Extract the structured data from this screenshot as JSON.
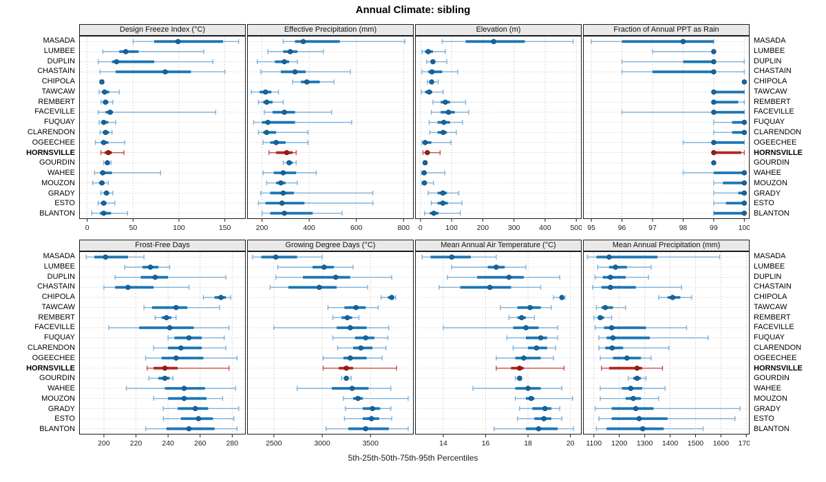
{
  "title": "Annual Climate: sibling",
  "footer": "5th-25th-50th-75th-95th Percentiles",
  "colors": {
    "blue_bar": "#1c76b4",
    "blue_whisker": "#7fb0d8",
    "blue_dot": "#1566a0",
    "blue_dot_edge": "#0b4a78",
    "red_bar": "#b2271f",
    "red_whisker": "#c44e44",
    "red_dot": "#9d1c14",
    "red_dot_edge": "#6f0f0a",
    "grid": "#c9c9c9",
    "strip_bg": "#e9e9e9",
    "panel_border": "#1a1a1a",
    "text": "#1a1a1a"
  },
  "chart_data": {
    "type": "dotplot-interval",
    "subtitle_note": "each row shows 5th-25th-50th-75th-95th percentile whisker/bar/dot",
    "percentiles": [
      5,
      25,
      50,
      75,
      95
    ],
    "categories": [
      "MASADA",
      "LUMBEE",
      "DUPLIN",
      "CHASTAIN",
      "CHIPOLA",
      "TAWCAW",
      "REMBERT",
      "FACEVILLE",
      "FUQUAY",
      "CLARENDON",
      "OGEECHEE",
      "HORNSVILLE",
      "GOURDIN",
      "WAHEE",
      "MOUZON",
      "GRADY",
      "ESTO",
      "BLANTON"
    ],
    "highlight": "HORNSVILLE",
    "highlight_index": 11,
    "legend_position": "none",
    "grid": "dotted",
    "panels": [
      {
        "title": "Design Freeze Index (°C)",
        "ticks": [
          0,
          50,
          100,
          150
        ],
        "xlim": [
          -8,
          172
        ],
        "rows": [
          [
            50,
            73,
            99,
            148,
            165
          ],
          [
            17,
            35,
            42,
            56,
            127
          ],
          [
            12,
            27,
            32,
            73,
            137
          ],
          [
            14,
            31,
            85,
            113,
            150
          ],
          [
            14,
            15,
            16,
            17,
            18
          ],
          [
            13,
            16,
            19,
            24,
            35
          ],
          [
            15,
            17,
            20,
            23,
            28
          ],
          [
            12,
            20,
            25,
            28,
            140
          ],
          [
            13,
            16,
            18,
            23,
            31
          ],
          [
            14,
            17,
            20,
            24,
            27
          ],
          [
            9,
            15,
            18,
            23,
            41
          ],
          [
            15,
            19,
            23,
            27,
            40
          ],
          [
            18,
            20,
            22,
            24,
            26
          ],
          [
            8,
            14,
            17,
            27,
            80
          ],
          [
            6,
            13,
            16,
            19,
            23
          ],
          [
            15,
            18,
            21,
            24,
            28
          ],
          [
            12,
            15,
            18,
            21,
            30
          ],
          [
            5,
            14,
            18,
            26,
            44
          ]
        ]
      },
      {
        "title": "Effective Precipitation (mm)",
        "ticks": [
          200,
          400,
          600,
          800
        ],
        "xlim": [
          140,
          840
        ],
        "rows": [
          [
            290,
            340,
            375,
            530,
            805
          ],
          [
            225,
            290,
            320,
            350,
            460
          ],
          [
            180,
            255,
            295,
            315,
            350
          ],
          [
            195,
            280,
            340,
            385,
            575
          ],
          [
            330,
            365,
            390,
            445,
            505
          ],
          [
            155,
            190,
            215,
            240,
            270
          ],
          [
            185,
            205,
            220,
            245,
            290
          ],
          [
            210,
            245,
            295,
            340,
            495
          ],
          [
            165,
            200,
            225,
            340,
            580
          ],
          [
            185,
            205,
            220,
            260,
            395
          ],
          [
            205,
            235,
            260,
            300,
            395
          ],
          [
            230,
            260,
            305,
            330,
            345
          ],
          [
            290,
            305,
            315,
            330,
            345
          ],
          [
            205,
            250,
            290,
            345,
            430
          ],
          [
            220,
            260,
            280,
            300,
            350
          ],
          [
            195,
            235,
            290,
            335,
            670
          ],
          [
            185,
            215,
            285,
            380,
            670
          ],
          [
            200,
            235,
            295,
            415,
            540
          ]
        ]
      },
      {
        "title": "Elevation (m)",
        "ticks": [
          0,
          100,
          200,
          300,
          400,
          500
        ],
        "xlim": [
          -15,
          515
        ],
        "rows": [
          [
            70,
            145,
            235,
            335,
            490
          ],
          [
            5,
            15,
            25,
            40,
            80
          ],
          [
            20,
            32,
            40,
            48,
            85
          ],
          [
            5,
            25,
            37,
            70,
            120
          ],
          [
            22,
            30,
            36,
            42,
            57
          ],
          [
            3,
            15,
            28,
            38,
            73
          ],
          [
            40,
            65,
            80,
            95,
            145
          ],
          [
            35,
            65,
            90,
            110,
            155
          ],
          [
            28,
            55,
            75,
            95,
            135
          ],
          [
            30,
            55,
            73,
            85,
            115
          ],
          [
            5,
            10,
            15,
            35,
            98
          ],
          [
            8,
            15,
            22,
            30,
            63
          ],
          [
            10,
            13,
            15,
            17,
            20
          ],
          [
            3,
            8,
            12,
            20,
            78
          ],
          [
            4,
            9,
            13,
            20,
            42
          ],
          [
            25,
            55,
            72,
            85,
            123
          ],
          [
            35,
            55,
            72,
            88,
            133
          ],
          [
            13,
            30,
            43,
            58,
            128
          ]
        ]
      },
      {
        "title": "Fraction of Annual PPT as Rain",
        "ticks": [
          95,
          96,
          97,
          98,
          99,
          100
        ],
        "xlim": [
          94.75,
          100.15
        ],
        "rows": [
          [
            95,
            96,
            98,
            99,
            99
          ],
          [
            97,
            99,
            99,
            99,
            99
          ],
          [
            96,
            98,
            99,
            99,
            100
          ],
          [
            96,
            97,
            99,
            99,
            100
          ],
          [
            100,
            100,
            100,
            100,
            100
          ],
          [
            99,
            99,
            99,
            100,
            100
          ],
          [
            99,
            99,
            99,
            99.8,
            100
          ],
          [
            96,
            99,
            99,
            100,
            100
          ],
          [
            99,
            99.6,
            100,
            100,
            100
          ],
          [
            99,
            99.6,
            100,
            100,
            100
          ],
          [
            98,
            99,
            99,
            100,
            100
          ],
          [
            99,
            99,
            99,
            99.9,
            100
          ],
          [
            99,
            99,
            99,
            99,
            99
          ],
          [
            98,
            99,
            100,
            100,
            100
          ],
          [
            99,
            99.3,
            100,
            100,
            100
          ],
          [
            99,
            99.8,
            100,
            100,
            100
          ],
          [
            99,
            99.4,
            100,
            100,
            100
          ],
          [
            99,
            99,
            100,
            100,
            100
          ]
        ]
      },
      {
        "title": "Frost-Free Days",
        "ticks": [
          200,
          220,
          240,
          260,
          280
        ],
        "xlim": [
          185,
          288
        ],
        "rows": [
          [
            189,
            194,
            201,
            215,
            225
          ],
          [
            213,
            224,
            229,
            234,
            241
          ],
          [
            207,
            223,
            232,
            240,
            276
          ],
          [
            200,
            207,
            215,
            231,
            253
          ],
          [
            262,
            269,
            273,
            276,
            279
          ],
          [
            225,
            230,
            245,
            252,
            272
          ],
          [
            232,
            236,
            239,
            242,
            245
          ],
          [
            203,
            222,
            241,
            256,
            278
          ],
          [
            240,
            244,
            253,
            261,
            275
          ],
          [
            231,
            240,
            248,
            261,
            276
          ],
          [
            226,
            236,
            245,
            262,
            283
          ],
          [
            227,
            231,
            238,
            246,
            278
          ],
          [
            228,
            234,
            238,
            241,
            243
          ],
          [
            214,
            238,
            250,
            263,
            282
          ],
          [
            231,
            240,
            250,
            264,
            274
          ],
          [
            237,
            246,
            257,
            265,
            284
          ],
          [
            237,
            248,
            259,
            268,
            281
          ],
          [
            226,
            239,
            253,
            269,
            283
          ]
        ]
      },
      {
        "title": "Growing Degree Days (°C)",
        "ticks": [
          2500,
          3000,
          3500
        ],
        "xlim": [
          2230,
          3940
        ],
        "rows": [
          [
            2280,
            2370,
            2520,
            2740,
            3000
          ],
          [
            2540,
            2900,
            3020,
            3120,
            3320
          ],
          [
            2520,
            2800,
            3140,
            3290,
            3720
          ],
          [
            2460,
            2650,
            2970,
            3150,
            3470
          ],
          [
            3610,
            3680,
            3720,
            3740,
            3760
          ],
          [
            3060,
            3230,
            3350,
            3450,
            3580
          ],
          [
            3110,
            3200,
            3260,
            3310,
            3380
          ],
          [
            2500,
            3150,
            3290,
            3460,
            3690
          ],
          [
            3110,
            3340,
            3450,
            3540,
            3680
          ],
          [
            3160,
            3320,
            3400,
            3520,
            3660
          ],
          [
            3010,
            3220,
            3290,
            3460,
            3620
          ],
          [
            3010,
            3170,
            3250,
            3320,
            3770
          ],
          [
            3200,
            3230,
            3250,
            3270,
            3300
          ],
          [
            2740,
            3100,
            3310,
            3480,
            3710
          ],
          [
            3220,
            3320,
            3370,
            3420,
            3890
          ],
          [
            3240,
            3420,
            3520,
            3600,
            3710
          ],
          [
            3230,
            3420,
            3510,
            3590,
            3720
          ],
          [
            3040,
            3270,
            3450,
            3690,
            3890
          ]
        ]
      },
      {
        "title": "Mean Annual Air Temperature (°C)",
        "ticks": [
          14,
          16,
          18,
          20
        ],
        "xlim": [
          12.7,
          20.5
        ],
        "rows": [
          [
            13.0,
            13.4,
            14.4,
            15.3,
            16.5
          ],
          [
            14.4,
            16.1,
            16.5,
            16.9,
            17.9
          ],
          [
            14.2,
            15.6,
            17.1,
            17.8,
            19.5
          ],
          [
            13.8,
            14.8,
            16.2,
            17.2,
            18.6
          ],
          [
            19.2,
            19.5,
            19.6,
            19.65,
            19.75
          ],
          [
            16.7,
            17.5,
            18.1,
            18.6,
            19.1
          ],
          [
            17.1,
            17.5,
            17.7,
            17.9,
            18.3
          ],
          [
            14.0,
            17.3,
            17.9,
            18.5,
            19.4
          ],
          [
            17.0,
            17.9,
            18.6,
            18.9,
            19.4
          ],
          [
            17.3,
            18.0,
            18.4,
            18.9,
            19.3
          ],
          [
            16.5,
            17.4,
            17.8,
            18.6,
            19.2
          ],
          [
            16.5,
            17.2,
            17.6,
            17.8,
            19.7
          ],
          [
            17.4,
            17.5,
            17.6,
            17.65,
            17.7
          ],
          [
            15.4,
            17.4,
            18.0,
            18.6,
            19.6
          ],
          [
            17.4,
            17.9,
            18.15,
            18.3,
            20.1
          ],
          [
            17.6,
            18.2,
            18.8,
            19.1,
            19.5
          ],
          [
            17.5,
            18.3,
            18.75,
            19.1,
            19.6
          ],
          [
            16.4,
            17.9,
            18.5,
            19.4,
            20.15
          ]
        ]
      },
      {
        "title": "Mean Annual Precipitation (mm)",
        "ticks": [
          1100,
          1200,
          1300,
          1400,
          1500,
          1600,
          1700
        ],
        "xlim": [
          1060,
          1710
        ],
        "rows": [
          [
            1075,
            1110,
            1160,
            1350,
            1595
          ],
          [
            1115,
            1160,
            1185,
            1230,
            1325
          ],
          [
            1105,
            1135,
            1165,
            1225,
            1315
          ],
          [
            1095,
            1130,
            1165,
            1265,
            1445
          ],
          [
            1355,
            1390,
            1410,
            1440,
            1485
          ],
          [
            1110,
            1130,
            1145,
            1175,
            1225
          ],
          [
            1100,
            1115,
            1125,
            1140,
            1170
          ],
          [
            1105,
            1140,
            1170,
            1305,
            1465
          ],
          [
            1120,
            1150,
            1175,
            1320,
            1550
          ],
          [
            1120,
            1145,
            1172,
            1215,
            1395
          ],
          [
            1125,
            1175,
            1230,
            1285,
            1325
          ],
          [
            1130,
            1160,
            1270,
            1290,
            1370
          ],
          [
            1235,
            1255,
            1270,
            1285,
            1305
          ],
          [
            1125,
            1210,
            1245,
            1290,
            1380
          ],
          [
            1125,
            1225,
            1255,
            1285,
            1355
          ],
          [
            1105,
            1170,
            1265,
            1335,
            1675
          ],
          [
            1120,
            1170,
            1278,
            1390,
            1655
          ],
          [
            1110,
            1150,
            1292,
            1375,
            1530
          ]
        ]
      }
    ]
  }
}
